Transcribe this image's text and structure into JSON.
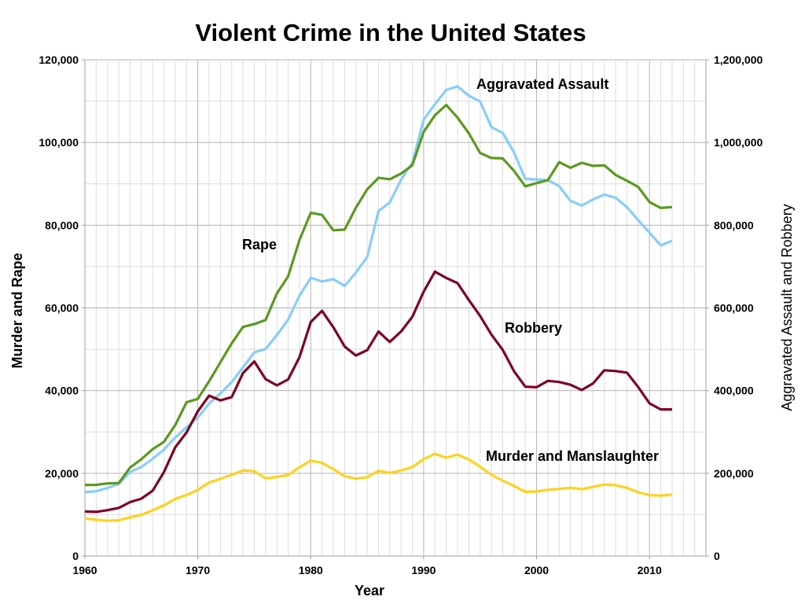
{
  "chart_data": {
    "type": "line",
    "title": "Violent Crime in the United States",
    "xlabel": "Year",
    "ylabel_left": "Murder and Rape",
    "ylabel_right": "Aggravated Assault and Robbery",
    "xlim": [
      1960,
      2015
    ],
    "ylim_left": [
      0,
      120000
    ],
    "ylim_right": [
      0,
      1200000
    ],
    "grid": true,
    "legend": "none (inline labels)",
    "x_ticks": [
      1960,
      1970,
      1980,
      1990,
      2000,
      2010
    ],
    "x_tick_labels": [
      "1960",
      "1970",
      "1980",
      "1990",
      "2000",
      "2010"
    ],
    "y_ticks_left": [
      0,
      20000,
      40000,
      60000,
      80000,
      100000,
      120000
    ],
    "y_tick_labels_left": [
      "0",
      "20,000",
      "40,000",
      "60,000",
      "80,000",
      "100,000",
      "120,000"
    ],
    "y_ticks_right": [
      0,
      200000,
      400000,
      600000,
      800000,
      1000000,
      1200000
    ],
    "y_tick_labels_right": [
      "0",
      "200,000",
      "400,000",
      "600,000",
      "800,000",
      "1,000,000",
      "1,200,000"
    ],
    "x": [
      1960,
      1961,
      1962,
      1963,
      1964,
      1965,
      1966,
      1967,
      1968,
      1969,
      1970,
      1971,
      1972,
      1973,
      1974,
      1975,
      1976,
      1977,
      1978,
      1979,
      1980,
      1981,
      1982,
      1983,
      1984,
      1985,
      1986,
      1987,
      1988,
      1989,
      1990,
      1991,
      1992,
      1993,
      1994,
      1995,
      1996,
      1997,
      1998,
      1999,
      2000,
      2001,
      2002,
      2003,
      2004,
      2005,
      2006,
      2007,
      2008,
      2009,
      2010,
      2011,
      2012
    ],
    "series": [
      {
        "name": "Aggravated Assault",
        "axis": "right",
        "color": "#87cefa",
        "label": "Aggravated Assault",
        "values": [
          154320,
          156760,
          164570,
          174210,
          203050,
          215330,
          235330,
          257160,
          286700,
          311090,
          334970,
          368760,
          393090,
          420650,
          456210,
          492620,
          500530,
          534350,
          571460,
          629480,
          672650,
          663900,
          669480,
          653290,
          685350,
          723250,
          834320,
          855090,
          910090,
          951710,
          1054860,
          1092740,
          1126970,
          1135610,
          1113180,
          1099210,
          1037050,
          1023200,
          976000,
          911740,
          910740,
          909020,
          894350,
          859030,
          847380,
          862220,
          874100,
          866360,
          843680,
          812510,
          781840,
          751130,
          762010
        ]
      },
      {
        "name": "Rape",
        "axis": "left",
        "color": "#5a9a1e",
        "label": "Rape",
        "values": [
          17190,
          17220,
          17550,
          17650,
          21420,
          23410,
          25820,
          27620,
          31670,
          37170,
          37990,
          42260,
          46850,
          51400,
          55400,
          56090,
          57080,
          63500,
          67610,
          76390,
          82990,
          82500,
          78770,
          78920,
          84230,
          88670,
          91460,
          91110,
          92490,
          94500,
          102560,
          106590,
          109060,
          106010,
          102220,
          97470,
          96250,
          96150,
          93140,
          89410,
          90180,
          90860,
          95240,
          93880,
          95090,
          94350,
          94470,
          92160,
          90750,
          89240,
          85590,
          84180,
          84380
        ]
      },
      {
        "name": "Robbery",
        "axis": "right",
        "color": "#7f0020",
        "label": "Robbery",
        "values": [
          107840,
          106670,
          110860,
          116470,
          130390,
          138690,
          157990,
          202910,
          262840,
          298850,
          349860,
          387700,
          376290,
          384220,
          442400,
          470500,
          427810,
          412610,
          426930,
          480700,
          565840,
          592910,
          553130,
          506570,
          485010,
          497870,
          542780,
          517700,
          542970,
          578330,
          639270,
          687730,
          672480,
          659870,
          618950,
          580510,
          535590,
          498530,
          447190,
          409370,
          408020,
          423560,
          420810,
          414240,
          401470,
          417440,
          449250,
          447320,
          443560,
          408740,
          369090,
          354520,
          354520
        ]
      },
      {
        "name": "Murder and Manslaughter",
        "axis": "left",
        "color": "#ffd21f",
        "label": "Murder and Manslaughter",
        "values": [
          9110,
          8740,
          8530,
          8640,
          9360,
          9960,
          11040,
          12240,
          13800,
          14760,
          16000,
          17780,
          18670,
          19640,
          20710,
          20510,
          18780,
          19120,
          19560,
          21460,
          23040,
          22520,
          21010,
          19310,
          18690,
          19060,
          20610,
          20100,
          20680,
          21500,
          23440,
          24700,
          23760,
          24530,
          23330,
          21610,
          19650,
          18210,
          16970,
          15520,
          15590,
          16040,
          16230,
          16530,
          16150,
          16740,
          17310,
          17130,
          16470,
          15400,
          14720,
          14610,
          14830
        ]
      }
    ]
  }
}
